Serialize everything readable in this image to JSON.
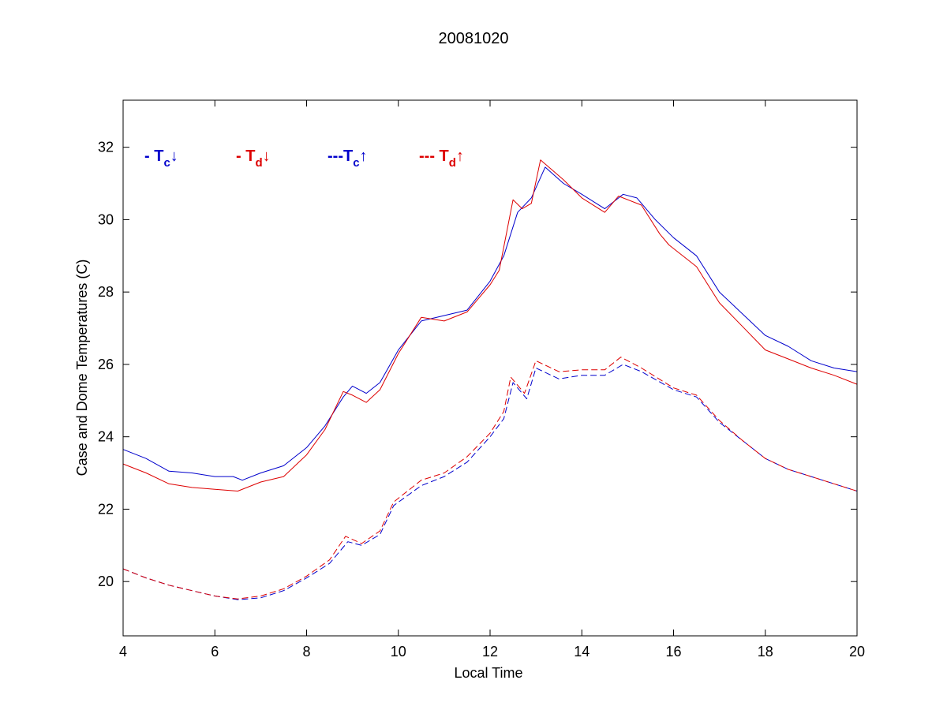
{
  "chart_data": {
    "type": "line",
    "title": "20081020",
    "xlabel": "Local Time",
    "ylabel": "Case and Dome Temperatures (C)",
    "xlim": [
      4,
      20
    ],
    "ylim": [
      18.5,
      33.3
    ],
    "xticks": [
      4,
      6,
      8,
      10,
      12,
      14,
      16,
      18,
      20
    ],
    "yticks": [
      20,
      22,
      24,
      26,
      28,
      30,
      32
    ],
    "grid": false,
    "legend_placement": "top-left, inside plot",
    "legend": [
      {
        "prefix": "- ",
        "base": "T",
        "sub": "c",
        "arrow": "↓",
        "color": "#0000cc"
      },
      {
        "prefix": "- ",
        "base": "T",
        "sub": "d",
        "arrow": "↓",
        "color": "#dd0000"
      },
      {
        "prefix": "---",
        "base": "T",
        "sub": "c",
        "arrow": "↑",
        "color": "#0000cc"
      },
      {
        "prefix": "--- ",
        "base": "T",
        "sub": "d",
        "arrow": "↑",
        "color": "#dd0000"
      }
    ],
    "series": [
      {
        "color": "#0000cc",
        "dash": "solid",
        "points": [
          [
            4.0,
            23.65
          ],
          [
            4.5,
            23.4
          ],
          [
            5.0,
            23.05
          ],
          [
            5.5,
            23.0
          ],
          [
            6.0,
            22.9
          ],
          [
            6.4,
            22.9
          ],
          [
            6.6,
            22.8
          ],
          [
            7.0,
            23.0
          ],
          [
            7.5,
            23.2
          ],
          [
            8.0,
            23.7
          ],
          [
            8.4,
            24.3
          ],
          [
            8.8,
            25.1
          ],
          [
            9.0,
            25.4
          ],
          [
            9.3,
            25.2
          ],
          [
            9.6,
            25.5
          ],
          [
            10.0,
            26.4
          ],
          [
            10.5,
            27.2
          ],
          [
            11.0,
            27.35
          ],
          [
            11.5,
            27.5
          ],
          [
            12.0,
            28.3
          ],
          [
            12.3,
            29.0
          ],
          [
            12.6,
            30.2
          ],
          [
            12.9,
            30.6
          ],
          [
            13.2,
            31.45
          ],
          [
            13.6,
            31.0
          ],
          [
            14.0,
            30.7
          ],
          [
            14.5,
            30.3
          ],
          [
            14.9,
            30.7
          ],
          [
            15.2,
            30.6
          ],
          [
            15.6,
            30.0
          ],
          [
            16.0,
            29.5
          ],
          [
            16.5,
            29.0
          ],
          [
            17.0,
            28.0
          ],
          [
            17.5,
            27.4
          ],
          [
            18.0,
            26.8
          ],
          [
            18.5,
            26.5
          ],
          [
            19.0,
            26.1
          ],
          [
            19.5,
            25.9
          ],
          [
            20.0,
            25.8
          ]
        ]
      },
      {
        "color": "#dd0000",
        "dash": "solid",
        "points": [
          [
            4.0,
            23.25
          ],
          [
            4.5,
            23.0
          ],
          [
            5.0,
            22.7
          ],
          [
            5.5,
            22.6
          ],
          [
            6.0,
            22.55
          ],
          [
            6.5,
            22.5
          ],
          [
            7.0,
            22.75
          ],
          [
            7.5,
            22.9
          ],
          [
            8.0,
            23.5
          ],
          [
            8.4,
            24.2
          ],
          [
            8.8,
            25.25
          ],
          [
            9.0,
            25.15
          ],
          [
            9.3,
            24.95
          ],
          [
            9.6,
            25.3
          ],
          [
            10.0,
            26.3
          ],
          [
            10.5,
            27.3
          ],
          [
            11.0,
            27.2
          ],
          [
            11.5,
            27.45
          ],
          [
            12.0,
            28.2
          ],
          [
            12.2,
            28.6
          ],
          [
            12.5,
            30.55
          ],
          [
            12.7,
            30.3
          ],
          [
            12.9,
            30.45
          ],
          [
            13.1,
            31.65
          ],
          [
            13.6,
            31.1
          ],
          [
            14.0,
            30.6
          ],
          [
            14.5,
            30.2
          ],
          [
            14.8,
            30.65
          ],
          [
            15.3,
            30.4
          ],
          [
            15.7,
            29.6
          ],
          [
            15.9,
            29.3
          ],
          [
            16.5,
            28.7
          ],
          [
            17.0,
            27.7
          ],
          [
            17.5,
            27.05
          ],
          [
            18.0,
            26.4
          ],
          [
            18.5,
            26.15
          ],
          [
            19.0,
            25.9
          ],
          [
            19.5,
            25.7
          ],
          [
            20.0,
            25.45
          ]
        ]
      },
      {
        "color": "#0000cc",
        "dash": "dashed",
        "points": [
          [
            4.0,
            20.35
          ],
          [
            4.5,
            20.1
          ],
          [
            5.0,
            19.9
          ],
          [
            5.5,
            19.75
          ],
          [
            6.0,
            19.6
          ],
          [
            6.5,
            19.5
          ],
          [
            7.0,
            19.55
          ],
          [
            7.5,
            19.75
          ],
          [
            8.0,
            20.1
          ],
          [
            8.5,
            20.5
          ],
          [
            8.9,
            21.1
          ],
          [
            9.2,
            21.0
          ],
          [
            9.6,
            21.3
          ],
          [
            9.9,
            22.1
          ],
          [
            10.5,
            22.65
          ],
          [
            11.0,
            22.9
          ],
          [
            11.5,
            23.3
          ],
          [
            12.0,
            24.0
          ],
          [
            12.3,
            24.5
          ],
          [
            12.5,
            25.5
          ],
          [
            12.8,
            25.05
          ],
          [
            13.0,
            25.9
          ],
          [
            13.5,
            25.6
          ],
          [
            14.0,
            25.7
          ],
          [
            14.5,
            25.7
          ],
          [
            14.9,
            26.0
          ],
          [
            15.3,
            25.8
          ],
          [
            16.0,
            25.3
          ],
          [
            16.5,
            25.1
          ],
          [
            17.0,
            24.4
          ],
          [
            17.5,
            23.9
          ],
          [
            18.0,
            23.4
          ],
          [
            18.5,
            23.1
          ],
          [
            19.0,
            22.9
          ],
          [
            19.5,
            22.7
          ],
          [
            20.0,
            22.5
          ]
        ]
      },
      {
        "color": "#dd0000",
        "dash": "dashed",
        "points": [
          [
            4.0,
            20.35
          ],
          [
            4.5,
            20.1
          ],
          [
            5.0,
            19.9
          ],
          [
            5.5,
            19.75
          ],
          [
            6.0,
            19.6
          ],
          [
            6.5,
            19.52
          ],
          [
            7.0,
            19.6
          ],
          [
            7.5,
            19.8
          ],
          [
            8.0,
            20.15
          ],
          [
            8.5,
            20.6
          ],
          [
            8.85,
            21.25
          ],
          [
            9.2,
            21.05
          ],
          [
            9.6,
            21.4
          ],
          [
            9.9,
            22.2
          ],
          [
            10.5,
            22.8
          ],
          [
            11.0,
            23.0
          ],
          [
            11.5,
            23.45
          ],
          [
            12.0,
            24.1
          ],
          [
            12.3,
            24.7
          ],
          [
            12.45,
            25.65
          ],
          [
            12.75,
            25.2
          ],
          [
            13.0,
            26.1
          ],
          [
            13.5,
            25.8
          ],
          [
            14.0,
            25.85
          ],
          [
            14.5,
            25.85
          ],
          [
            14.85,
            26.2
          ],
          [
            15.3,
            25.9
          ],
          [
            16.0,
            25.35
          ],
          [
            16.5,
            25.15
          ],
          [
            17.0,
            24.45
          ],
          [
            17.5,
            23.9
          ],
          [
            18.0,
            23.4
          ],
          [
            18.5,
            23.1
          ],
          [
            19.0,
            22.9
          ],
          [
            19.5,
            22.7
          ],
          [
            20.0,
            22.5
          ]
        ]
      }
    ]
  }
}
